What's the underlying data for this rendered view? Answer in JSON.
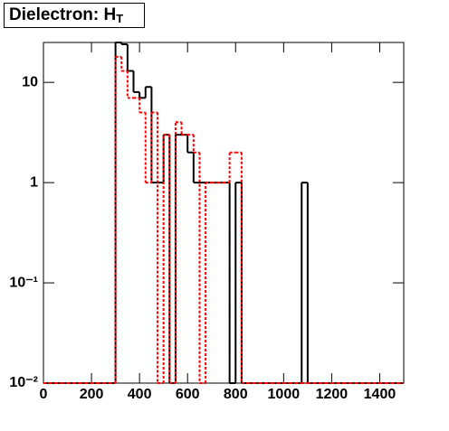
{
  "chart_data": {
    "type": "histogram",
    "title": "Dielectron: H",
    "title_subscript": "T",
    "log_y": true,
    "xlim": [
      0,
      1500
    ],
    "xticks": [
      0,
      200,
      400,
      600,
      800,
      1000,
      1200,
      1400
    ],
    "ylim": [
      0.01,
      25
    ],
    "yticks": [
      {
        "value": 0.01,
        "label": "10⁻²"
      },
      {
        "value": 0.1,
        "label": "10⁻¹"
      },
      1,
      10
    ],
    "bins": [
      0,
      25,
      50,
      75,
      100,
      125,
      150,
      175,
      200,
      225,
      250,
      275,
      300,
      325,
      350,
      375,
      400,
      425,
      450,
      475,
      500,
      525,
      550,
      575,
      600,
      625,
      650,
      675,
      700,
      725,
      750,
      775,
      800,
      825,
      850,
      875,
      900,
      925,
      950,
      975,
      1000,
      1025,
      1050,
      1075,
      1100,
      1125,
      1150,
      1175,
      1200,
      1225,
      1250,
      1275,
      1300,
      1325,
      1350,
      1375,
      1400,
      1425,
      1450,
      1475,
      1500
    ],
    "series": [
      {
        "color": "#000000",
        "line_style": "solid",
        "values": [
          0,
          0,
          0,
          0,
          0,
          0,
          0,
          0,
          0,
          0,
          0,
          0,
          25,
          24,
          13,
          8,
          7,
          9,
          1,
          1,
          3,
          0,
          3,
          3,
          2,
          1,
          1,
          1,
          1,
          1,
          1,
          0,
          1,
          0,
          0,
          0,
          0,
          0,
          0,
          0,
          0,
          0,
          0,
          1,
          0,
          0,
          0,
          0,
          0,
          0,
          0,
          0,
          0,
          0,
          0,
          0,
          0,
          0,
          0,
          0
        ]
      },
      {
        "color": "#ff0000",
        "line_style": "dashed",
        "values": [
          0,
          0,
          0,
          0,
          0,
          0,
          0,
          0,
          0,
          0,
          0,
          0,
          18,
          13,
          7,
          7,
          5,
          1,
          5,
          0,
          3,
          0,
          4,
          3,
          3,
          2,
          0,
          1,
          1,
          1,
          1,
          2,
          2,
          0,
          0,
          0,
          0,
          0,
          0,
          0,
          0,
          0,
          0,
          0,
          0,
          0,
          0,
          0,
          0,
          0,
          0,
          0,
          0,
          0,
          0,
          0,
          0,
          0,
          0,
          0
        ]
      }
    ]
  }
}
